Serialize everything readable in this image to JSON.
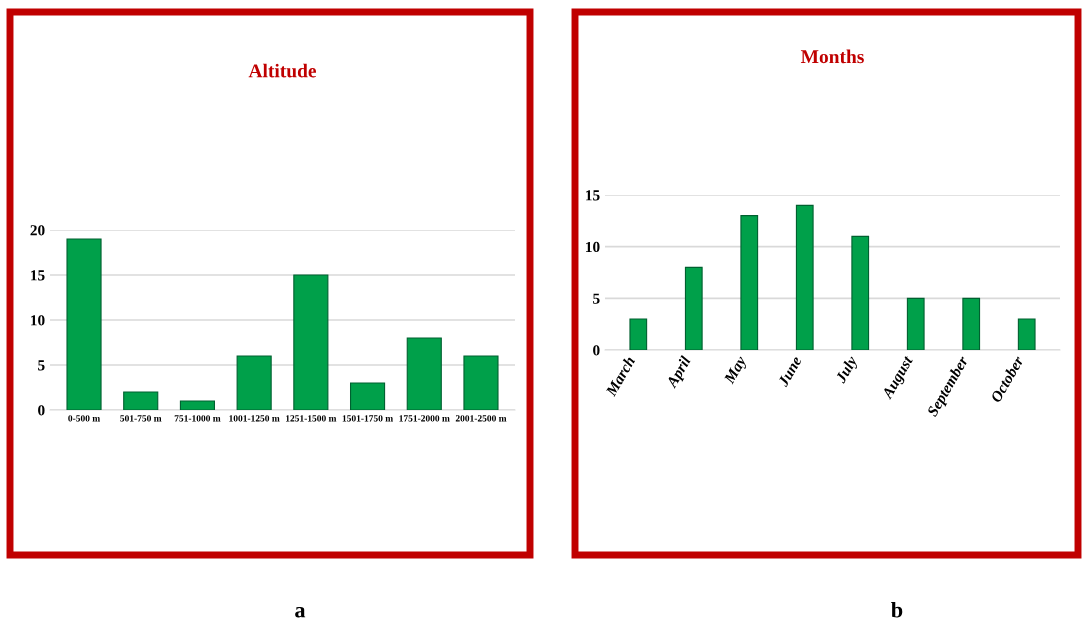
{
  "chart_data": [
    {
      "type": "bar",
      "title": "Altitude",
      "categories": [
        "0-500 m",
        "501-750 m",
        "751-1000 m",
        "1001-1250 m",
        "1251-1500 m",
        "1501-1750 m",
        "1751-2000 m",
        "2001-2500 m"
      ],
      "values": [
        19,
        2,
        1,
        6,
        15,
        3,
        8,
        6
      ],
      "color": "#00a04a",
      "ylim": [
        0,
        20
      ],
      "yticks": [
        0,
        5,
        10,
        15,
        20
      ],
      "grid": "y",
      "annotations": [
        "a"
      ]
    },
    {
      "type": "bar",
      "title": "Months",
      "categories": [
        "March",
        "April",
        "May",
        "June",
        "July",
        "August",
        "September",
        "October"
      ],
      "values": [
        3,
        8,
        13,
        14,
        11,
        5,
        5,
        3
      ],
      "color": "#00a04a",
      "ylim": [
        0,
        15
      ],
      "yticks": [
        0,
        5,
        10,
        15
      ],
      "grid": "y",
      "annotations": [
        "b"
      ]
    }
  ]
}
